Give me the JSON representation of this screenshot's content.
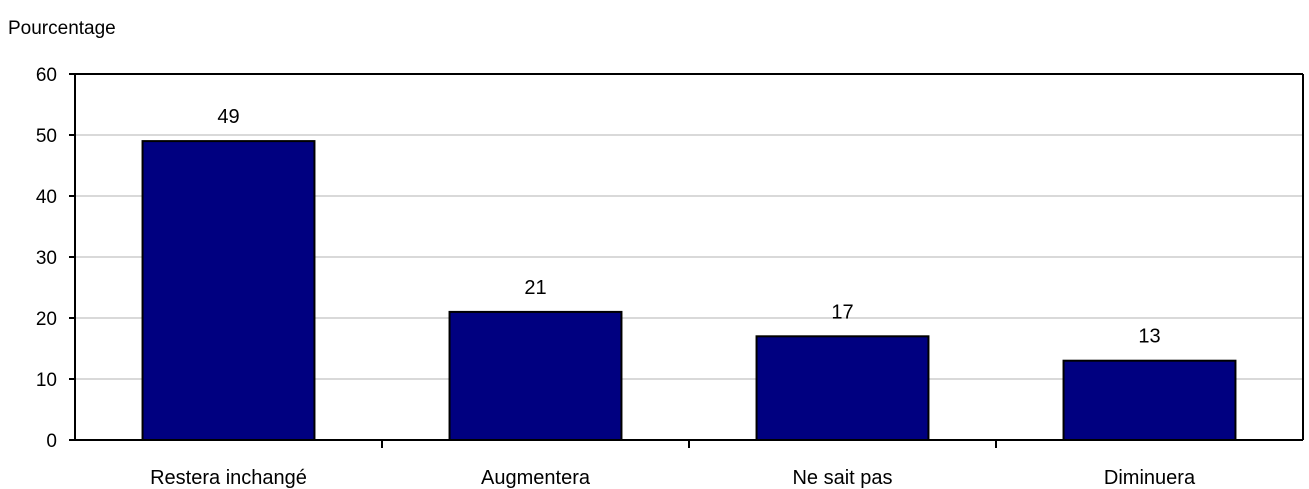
{
  "chart_data": {
    "type": "bar",
    "ylabel": "Pourcentage",
    "categories": [
      "Restera inchangé",
      "Augmentera",
      "Ne sait pas",
      "Diminuera"
    ],
    "values": [
      49,
      21,
      17,
      13
    ],
    "data_labels": [
      "49",
      "21",
      "17",
      "13"
    ],
    "ylim": [
      0,
      60
    ],
    "yticks": [
      0,
      10,
      20,
      30,
      40,
      50,
      60
    ],
    "grid": true,
    "bar_color": "#000080",
    "bar_edge_color": "#000000",
    "grid_color": "#d9d9d9"
  }
}
